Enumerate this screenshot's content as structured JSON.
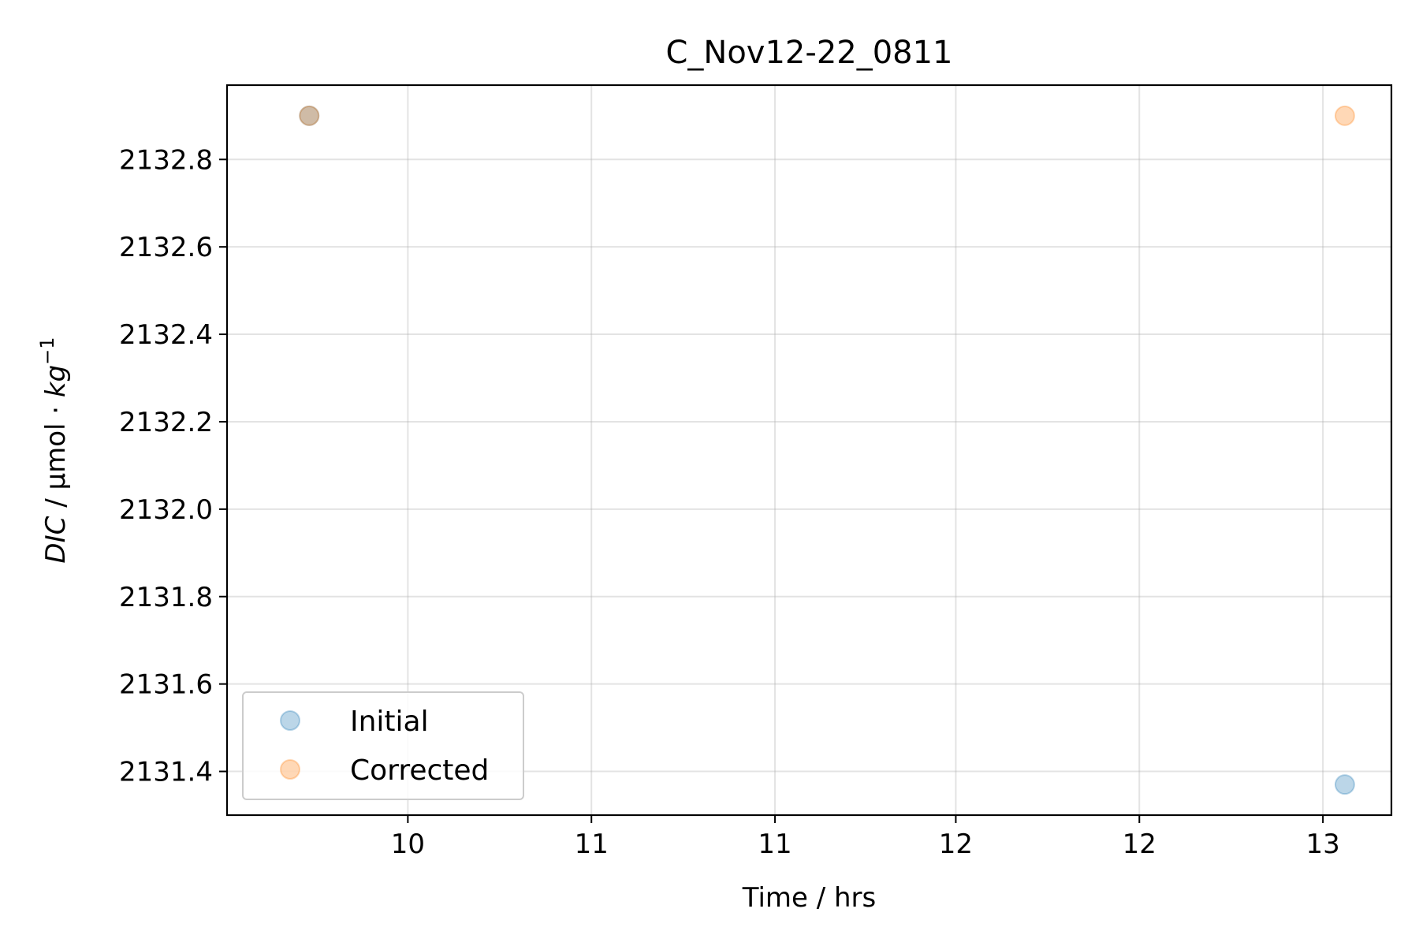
{
  "chart_data": {
    "type": "scatter",
    "title": "C_Nov12-22_0811",
    "xlabel": "Time / hrs",
    "ylabel_parts": {
      "italic": "DIC",
      "mid": " / µmol · ",
      "unit": "kg",
      "sup": "−1"
    },
    "xlim": [
      9.17,
      13.42
    ],
    "ylim": [
      2131.3,
      2132.97
    ],
    "x_ticks": [
      {
        "pos": 9.83,
        "label": "10"
      },
      {
        "pos": 10.5,
        "label": "11"
      },
      {
        "pos": 11.17,
        "label": "11"
      },
      {
        "pos": 11.83,
        "label": "12"
      },
      {
        "pos": 12.5,
        "label": "12"
      },
      {
        "pos": 13.17,
        "label": "13"
      }
    ],
    "y_ticks": [
      {
        "pos": 2131.4,
        "label": "2131.4"
      },
      {
        "pos": 2131.6,
        "label": "2131.6"
      },
      {
        "pos": 2131.8,
        "label": "2131.8"
      },
      {
        "pos": 2132.0,
        "label": "2132.0"
      },
      {
        "pos": 2132.2,
        "label": "2132.2"
      },
      {
        "pos": 2132.4,
        "label": "2132.4"
      },
      {
        "pos": 2132.6,
        "label": "2132.6"
      },
      {
        "pos": 2132.8,
        "label": "2132.8"
      }
    ],
    "grid": true,
    "legend_position": "lower-left",
    "series": [
      {
        "name": "Initial",
        "color": "#1f77b4",
        "points": [
          {
            "x": 9.47,
            "y": 2132.9
          },
          {
            "x": 13.25,
            "y": 2131.37
          }
        ]
      },
      {
        "name": "Corrected",
        "color": "#ff7f0e",
        "points": [
          {
            "x": 9.47,
            "y": 2132.9
          },
          {
            "x": 13.25,
            "y": 2132.9
          }
        ]
      }
    ]
  }
}
